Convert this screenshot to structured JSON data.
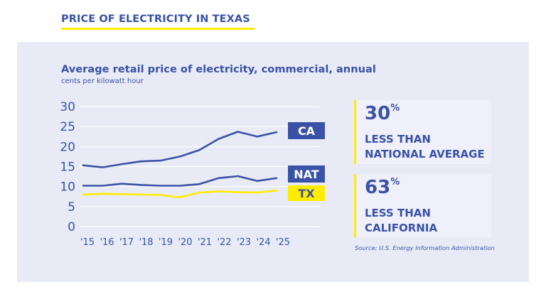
{
  "header": {
    "title": "PRICE OF ELECTRICITY IN TEXAS"
  },
  "colors": {
    "primary_blue": "#3a52a6",
    "accent_yellow": "#ffec00",
    "panel_bg": "#e8ebf5",
    "card_bg": "#eff0f9",
    "gridline": "#ffffff"
  },
  "chart_data": {
    "type": "line",
    "title": "Average retail price of electricity, commercial, annual",
    "subtitle": "cents per kilowatt hour",
    "xlabel": "",
    "ylabel": "cents per kilowatt hour",
    "x": [
      "'15",
      "'16",
      "'17",
      "'18",
      "'19",
      "'20",
      "'21",
      "'22",
      "'23",
      "'24",
      "'25"
    ],
    "yticks": [
      30,
      25,
      20,
      15,
      10,
      5,
      0
    ],
    "ylim": [
      0,
      30
    ],
    "grid": true,
    "legend": "inline-right",
    "series": [
      {
        "name": "CA",
        "color": "#3a52a6",
        "label_bg": "#3a52a6",
        "label_fg": "#ffffff",
        "values": [
          15.3,
          14.8,
          15.6,
          16.3,
          16.5,
          17.5,
          19.1,
          21.9,
          23.7,
          22.5,
          23.6
        ]
      },
      {
        "name": "NAT",
        "color": "#3a52a6",
        "label_bg": "#3a52a6",
        "label_fg": "#ffffff",
        "values": [
          10.2,
          10.2,
          10.7,
          10.4,
          10.2,
          10.2,
          10.6,
          12.1,
          12.6,
          11.4,
          12.1
        ]
      },
      {
        "name": "TX",
        "color": "#ffec00",
        "label_bg": "#ffec00",
        "label_fg": "#3a52a6",
        "values": [
          8.0,
          8.2,
          8.1,
          8.0,
          7.9,
          7.3,
          8.5,
          8.8,
          8.6,
          8.5,
          9.0
        ]
      }
    ]
  },
  "stats": [
    {
      "value": "30",
      "unit": "%",
      "line1": "LESS THAN",
      "line2": "NATIONAL AVERAGE"
    },
    {
      "value": "63",
      "unit": "%",
      "line1": "LESS THAN",
      "line2": "CALIFORNIA"
    }
  ],
  "source": "Source: U.S. Energy Information Administration"
}
